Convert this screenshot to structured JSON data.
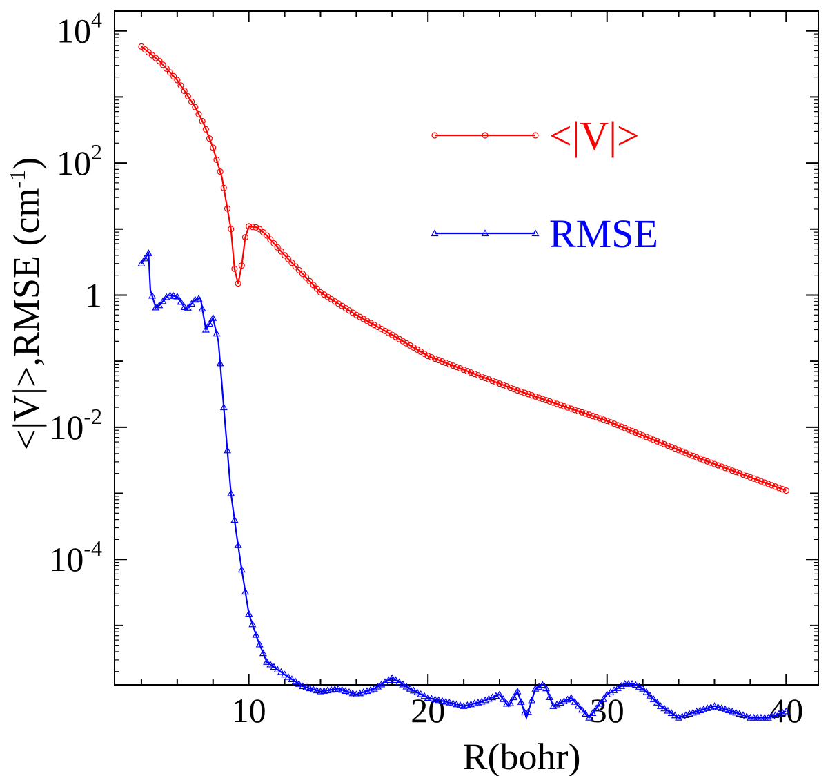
{
  "chart_data": {
    "type": "line",
    "xlabel": "R(bohr)",
    "ylabel": "<|V|>,RMSE (cm⁻¹)",
    "ylabel_parts": {
      "main": "<|V|>,RMSE (cm",
      "sup": "-1",
      "end": ")"
    },
    "x_scale": "linear",
    "y_scale": "log",
    "xlim": [
      2.5,
      41.8
    ],
    "ylim_log10": [
      -5.9,
      4.3
    ],
    "x_ticks": [
      10,
      20,
      30,
      40
    ],
    "x_tick_labels": [
      "10",
      "20",
      "30",
      "40"
    ],
    "y_ticks_log10": [
      -4,
      -2,
      0,
      2,
      4
    ],
    "y_tick_labels": [
      {
        "base": "10",
        "sup": "-4"
      },
      {
        "base": "10",
        "sup": "-2"
      },
      {
        "base": "1",
        "sup": ""
      },
      {
        "base": "10",
        "sup": "2"
      },
      {
        "base": "10",
        "sup": "4"
      }
    ],
    "grid": false,
    "legend_position": "top-right",
    "series": [
      {
        "name": "<|V|>",
        "color": "#ff0000",
        "marker": "circle",
        "x": [
          4,
          5,
          6,
          7,
          7.5,
          8,
          8.5,
          9,
          9.2,
          9.4,
          9.6,
          9.8,
          10,
          10.5,
          11,
          12,
          14,
          16,
          18,
          20,
          25,
          30,
          35,
          40
        ],
        "y": [
          5800,
          3500,
          1800,
          700,
          380,
          170,
          60,
          10,
          2.5,
          1.5,
          2.8,
          7.5,
          11,
          10.5,
          8,
          4,
          1.1,
          0.5,
          0.25,
          0.12,
          0.036,
          0.0125,
          0.0035,
          0.0011
        ]
      },
      {
        "name": "RMSE",
        "color": "#0000ff",
        "marker": "triangle",
        "x": [
          4,
          4.4,
          4.5,
          4.8,
          5,
          5.5,
          6,
          6.5,
          7,
          7.3,
          7.6,
          8,
          8.3,
          8.6,
          9,
          9.3,
          9.6,
          10,
          10.5,
          11,
          12,
          13,
          14,
          15,
          16,
          17,
          18,
          19,
          20,
          21,
          22,
          23,
          24,
          24.5,
          25,
          25.5,
          26,
          26.5,
          27,
          28,
          29,
          29.5,
          30,
          31,
          31.5,
          32,
          33,
          34,
          35,
          36,
          37,
          38,
          39,
          40
        ],
        "y": [
          3.0,
          4.3,
          1.2,
          0.65,
          0.7,
          1.0,
          0.95,
          0.6,
          0.85,
          0.9,
          0.3,
          0.45,
          0.2,
          0.02,
          0.001,
          0.00025,
          7e-05,
          1.5e-05,
          6e-06,
          2.8e-06,
          1.8e-06,
          1.2e-06,
          1e-06,
          1.1e-06,
          9e-07,
          1.1e-06,
          1.6e-06,
          1.1e-06,
          8e-07,
          7e-07,
          6e-07,
          7e-07,
          9e-07,
          6e-07,
          1e-06,
          4e-07,
          1.1e-06,
          1.3e-06,
          6e-07,
          8e-07,
          4e-07,
          6e-07,
          9e-07,
          1.3e-06,
          1.3e-06,
          1.1e-06,
          6e-07,
          4e-07,
          5e-07,
          6e-07,
          5e-07,
          4e-07,
          4e-07,
          5e-07
        ]
      }
    ]
  }
}
